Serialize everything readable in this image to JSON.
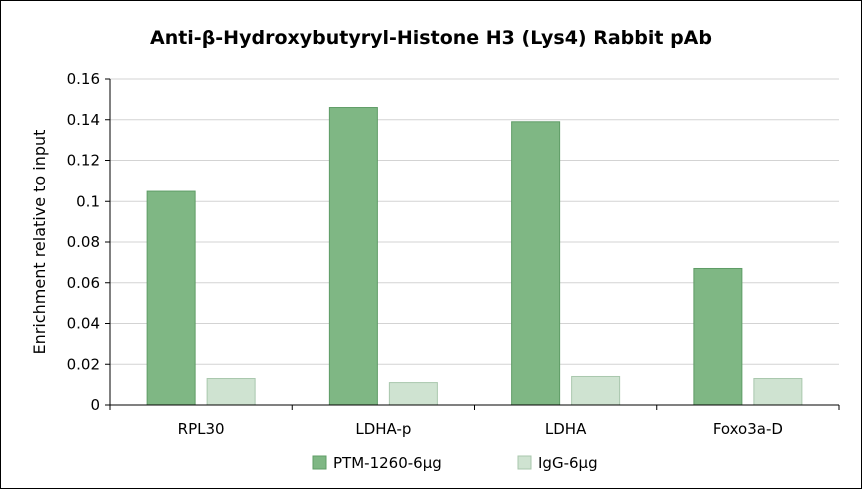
{
  "chart_data": {
    "type": "bar",
    "title": "Anti-β-Hydroxybutyryl-Histone H3 (Lys4) Rabbit pAb",
    "xlabel": "",
    "ylabel": "Enrichment relative to input",
    "categories": [
      "RPL30",
      "LDHA-p",
      "LDHA",
      "Foxo3a-D"
    ],
    "series": [
      {
        "name": "PTM-1260-6μg",
        "values": [
          0.105,
          0.146,
          0.139,
          0.067
        ],
        "color": "#7fb784",
        "stroke": "#5f9c66"
      },
      {
        "name": "IgG-6μg",
        "values": [
          0.013,
          0.011,
          0.014,
          0.013
        ],
        "color": "#cfe3d1",
        "stroke": "#a9c7ad"
      }
    ],
    "ylim": [
      0,
      0.16
    ],
    "yticks": [
      0,
      0.02,
      0.04,
      0.06,
      0.08,
      0.1,
      0.12,
      0.14,
      0.16
    ],
    "ytick_labels": [
      "0",
      "0.02",
      "0.04",
      "0.06",
      "0.08",
      "0.1",
      "0.12",
      "0.14",
      "0.16"
    ],
    "grid": true,
    "legend_position": "bottom-center"
  }
}
